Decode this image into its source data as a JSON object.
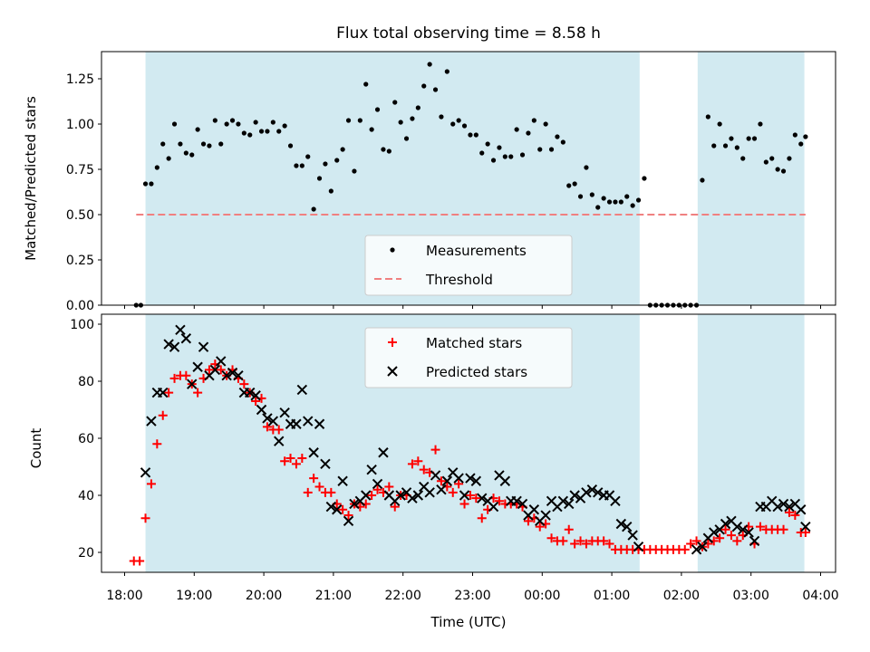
{
  "chart_data": [
    {
      "type": "scatter",
      "title": "Flux total observing time = 8.58 h",
      "xlabel": "",
      "ylabel": "Matched/Predicted stars",
      "ylim": [
        0,
        1.4
      ],
      "yticks": [
        "0.00",
        "0.25",
        "0.50",
        "0.75",
        "1.00",
        "1.25"
      ],
      "grid": false,
      "legend_position": "lower-center",
      "threshold": 0.5,
      "threshold_color": "#f08080",
      "shade_color": "#add8e6",
      "shaded_intervals": [
        [
          "18:18",
          "01:24"
        ],
        [
          "02:14",
          "03:46"
        ]
      ],
      "series": [
        {
          "name": "Measurements",
          "marker": "dot",
          "color": "#000000",
          "x": [
            "18:10",
            "18:14",
            "18:18",
            "18:23",
            "18:28",
            "18:33",
            "18:38",
            "18:43",
            "18:48",
            "18:53",
            "18:58",
            "19:03",
            "19:08",
            "19:13",
            "19:18",
            "19:23",
            "19:28",
            "19:33",
            "19:38",
            "19:43",
            "19:48",
            "19:53",
            "19:58",
            "20:03",
            "20:08",
            "20:13",
            "20:18",
            "20:23",
            "20:28",
            "20:33",
            "20:38",
            "20:43",
            "20:48",
            "20:53",
            "20:58",
            "21:03",
            "21:08",
            "21:13",
            "21:18",
            "21:23",
            "21:28",
            "21:33",
            "21:38",
            "21:43",
            "21:48",
            "21:53",
            "21:58",
            "22:03",
            "22:08",
            "22:13",
            "22:18",
            "22:23",
            "22:28",
            "22:33",
            "22:38",
            "22:43",
            "22:48",
            "22:53",
            "22:58",
            "23:03",
            "23:08",
            "23:13",
            "23:18",
            "23:23",
            "23:28",
            "23:33",
            "23:38",
            "23:43",
            "23:48",
            "23:53",
            "23:58",
            "00:03",
            "00:08",
            "00:13",
            "00:18",
            "00:23",
            "00:28",
            "00:33",
            "00:38",
            "00:43",
            "00:48",
            "00:53",
            "00:58",
            "01:03",
            "01:08",
            "01:13",
            "01:18",
            "01:23",
            "01:28",
            "01:33",
            "01:38",
            "01:43",
            "01:48",
            "01:53",
            "01:58",
            "02:03",
            "02:08",
            "02:13",
            "02:18",
            "02:23",
            "02:28",
            "02:33",
            "02:38",
            "02:43",
            "02:48",
            "02:53",
            "02:58",
            "03:03",
            "03:08",
            "03:13",
            "03:18",
            "03:23",
            "03:28",
            "03:33",
            "03:38",
            "03:43",
            "03:47"
          ],
          "y": [
            0,
            0,
            0.67,
            0.67,
            0.76,
            0.89,
            0.81,
            1.0,
            0.89,
            0.84,
            0.83,
            0.97,
            0.89,
            0.88,
            1.02,
            0.89,
            1.0,
            1.02,
            1.0,
            0.95,
            0.94,
            1.01,
            0.96,
            0.96,
            1.01,
            0.96,
            0.99,
            0.88,
            0.77,
            0.77,
            0.82,
            0.53,
            0.7,
            0.78,
            0.63,
            0.8,
            0.86,
            1.02,
            0.74,
            1.02,
            1.22,
            0.97,
            1.08,
            0.86,
            0.85,
            1.12,
            1.01,
            0.92,
            1.03,
            1.09,
            1.21,
            1.33,
            1.19,
            1.04,
            1.29,
            1.0,
            1.02,
            0.99,
            0.94,
            0.94,
            0.84,
            0.89,
            0.8,
            0.87,
            0.82,
            0.82,
            0.97,
            0.83,
            0.95,
            1.02,
            0.86,
            1.0,
            0.86,
            0.93,
            0.9,
            0.66,
            0.67,
            0.6,
            0.76,
            0.61,
            0.54,
            0.59,
            0.57,
            0.57,
            0.57,
            0.6,
            0.55,
            0.58,
            0.7,
            0,
            0,
            0,
            0,
            0,
            0,
            0,
            0,
            0,
            0.69,
            1.04,
            0.88,
            1.0,
            0.88,
            0.92,
            0.87,
            0.81,
            0.92,
            0.92,
            1.0,
            0.79,
            0.81,
            0.75,
            0.74,
            0.81,
            0.94,
            0.89,
            0.93
          ]
        },
        {
          "name": "Threshold",
          "marker": "dashed-line",
          "color": "#f08080",
          "x": [
            "18:10",
            "03:47"
          ],
          "y": [
            0.5,
            0.5
          ]
        }
      ]
    },
    {
      "type": "scatter",
      "title": "",
      "xlabel": "Time (UTC)",
      "ylabel": "Count",
      "ylim": [
        13,
        101
      ],
      "yticks": [
        "20",
        "40",
        "60",
        "80",
        "100"
      ],
      "xticks": [
        "18:00",
        "19:00",
        "20:00",
        "21:00",
        "22:00",
        "23:00",
        "00:00",
        "01:00",
        "02:00",
        "03:00",
        "04:00"
      ],
      "grid": false,
      "legend_position": "upper-center",
      "shaded_intervals": [
        [
          "18:18",
          "01:24"
        ],
        [
          "02:14",
          "03:46"
        ]
      ],
      "series": [
        {
          "name": "Matched stars",
          "marker": "plus",
          "color": "#ff0000",
          "x": [
            "18:08",
            "18:13",
            "18:18",
            "18:23",
            "18:28",
            "18:33",
            "18:38",
            "18:43",
            "18:48",
            "18:53",
            "18:58",
            "19:03",
            "19:08",
            "19:13",
            "19:18",
            "19:23",
            "19:28",
            "19:33",
            "19:38",
            "19:43",
            "19:48",
            "19:53",
            "19:58",
            "20:03",
            "20:08",
            "20:13",
            "20:18",
            "20:23",
            "20:28",
            "20:33",
            "20:38",
            "20:43",
            "20:48",
            "20:53",
            "20:58",
            "21:03",
            "21:08",
            "21:13",
            "21:18",
            "21:23",
            "21:28",
            "21:33",
            "21:38",
            "21:43",
            "21:48",
            "21:53",
            "21:58",
            "22:03",
            "22:08",
            "22:13",
            "22:18",
            "22:23",
            "22:28",
            "22:33",
            "22:38",
            "22:43",
            "22:48",
            "22:53",
            "22:58",
            "23:03",
            "23:08",
            "23:13",
            "23:18",
            "23:23",
            "23:28",
            "23:33",
            "23:38",
            "23:43",
            "23:48",
            "23:53",
            "23:58",
            "00:03",
            "00:08",
            "00:13",
            "00:18",
            "00:23",
            "00:28",
            "00:33",
            "00:38",
            "00:43",
            "00:48",
            "00:53",
            "00:58",
            "01:03",
            "01:08",
            "01:13",
            "01:18",
            "01:23",
            "01:28",
            "01:33",
            "01:38",
            "01:43",
            "01:48",
            "01:53",
            "01:58",
            "02:03",
            "02:08",
            "02:13",
            "02:18",
            "02:23",
            "02:28",
            "02:33",
            "02:38",
            "02:43",
            "02:48",
            "02:53",
            "02:58",
            "03:03",
            "03:08",
            "03:13",
            "03:18",
            "03:23",
            "03:28",
            "03:33",
            "03:38",
            "03:43",
            "03:47"
          ],
          "y": [
            17,
            17,
            32,
            44,
            58,
            68,
            76,
            81,
            82,
            82,
            79,
            76,
            81,
            84,
            86,
            84,
            82,
            84,
            81,
            79,
            76,
            73,
            74,
            64,
            63,
            63,
            52,
            53,
            51,
            53,
            41,
            46,
            43,
            41,
            41,
            37,
            35,
            33,
            37,
            36,
            37,
            40,
            42,
            41,
            43,
            36,
            40,
            40,
            51,
            52,
            49,
            48,
            56,
            45,
            43,
            41,
            44,
            37,
            40,
            39,
            32,
            35,
            39,
            38,
            37,
            37,
            37,
            36,
            31,
            32,
            29,
            30,
            25,
            24,
            24,
            28,
            23,
            24,
            23,
            24,
            24,
            24,
            23,
            21,
            21,
            21,
            21,
            21,
            21,
            21,
            21,
            21,
            21,
            21,
            21,
            21,
            23,
            24,
            22,
            23,
            24,
            25,
            28,
            26,
            24,
            26,
            29,
            23,
            29,
            28,
            28,
            28,
            28,
            34,
            33,
            27,
            27
          ]
        },
        {
          "name": "Predicted stars",
          "marker": "x",
          "color": "#000000",
          "x": [
            "18:18",
            "18:23",
            "18:28",
            "18:33",
            "18:38",
            "18:43",
            "18:48",
            "18:53",
            "18:58",
            "19:03",
            "19:08",
            "19:13",
            "19:18",
            "19:23",
            "19:28",
            "19:33",
            "19:38",
            "19:43",
            "19:48",
            "19:53",
            "19:58",
            "20:03",
            "20:08",
            "20:13",
            "20:18",
            "20:23",
            "20:28",
            "20:33",
            "20:38",
            "20:43",
            "20:48",
            "20:53",
            "20:58",
            "21:03",
            "21:08",
            "21:13",
            "21:18",
            "21:23",
            "21:28",
            "21:33",
            "21:38",
            "21:43",
            "21:48",
            "21:53",
            "21:58",
            "22:03",
            "22:08",
            "22:13",
            "22:18",
            "22:23",
            "22:28",
            "22:33",
            "22:38",
            "22:43",
            "22:48",
            "22:53",
            "22:58",
            "23:03",
            "23:08",
            "23:13",
            "23:18",
            "23:23",
            "23:28",
            "23:33",
            "23:38",
            "23:43",
            "23:48",
            "23:53",
            "23:58",
            "00:03",
            "00:08",
            "00:13",
            "00:18",
            "00:23",
            "00:28",
            "00:33",
            "00:38",
            "00:43",
            "00:48",
            "00:53",
            "00:58",
            "01:03",
            "01:08",
            "01:13",
            "01:18",
            "01:23",
            "02:13",
            "02:18",
            "02:23",
            "02:28",
            "02:33",
            "02:38",
            "02:43",
            "02:48",
            "02:53",
            "02:58",
            "03:03",
            "03:08",
            "03:13",
            "03:18",
            "03:23",
            "03:28",
            "03:33",
            "03:38",
            "03:43",
            "03:47"
          ],
          "y": [
            48,
            66,
            76,
            76,
            93,
            92,
            98,
            95,
            79,
            85,
            92,
            82,
            84,
            87,
            82,
            83,
            82,
            76,
            76,
            75,
            70,
            67,
            66,
            59,
            69,
            65,
            65,
            77,
            66,
            55,
            65,
            51,
            36,
            35,
            45,
            31,
            37,
            38,
            40,
            49,
            44,
            55,
            40,
            38,
            40,
            41,
            39,
            40,
            43,
            41,
            47,
            42,
            45,
            48,
            46,
            40,
            46,
            45,
            39,
            38,
            36,
            47,
            45,
            38,
            38,
            37,
            33,
            35,
            31,
            33,
            38,
            36,
            38,
            37,
            40,
            39,
            41,
            42,
            41,
            40,
            40,
            38,
            30,
            29,
            26,
            22,
            21,
            22,
            25,
            27,
            28,
            30,
            31,
            29,
            28,
            27,
            24,
            36,
            36,
            38,
            36,
            37,
            36,
            37,
            35,
            29
          ]
        }
      ]
    }
  ]
}
